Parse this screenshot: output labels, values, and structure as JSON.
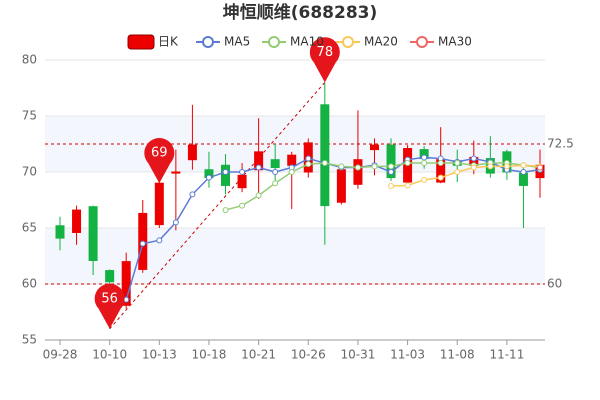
{
  "chart_data": {
    "type": "candlestick",
    "title": "坤恒顺维(688283)",
    "categories": [
      "09-28",
      null,
      null,
      "10-10",
      null,
      null,
      "10-13",
      null,
      null,
      "10-18",
      null,
      null,
      "10-21",
      null,
      null,
      "10-26",
      null,
      null,
      "10-31",
      null,
      null,
      "11-03",
      null,
      null,
      "11-08",
      null,
      null,
      "11-11",
      null,
      null
    ],
    "ylim": [
      55,
      80
    ],
    "yticks": [
      55,
      60,
      65,
      70,
      75,
      80
    ],
    "grid": true,
    "up_color": "#ec0000",
    "down_color": "#14b143",
    "candles": {
      "name": "日K",
      "open": [
        65.2,
        64.6,
        66.9,
        61.2,
        58.1,
        61.3,
        65.3,
        69.9,
        71.1,
        70.2,
        70.6,
        68.6,
        70.2,
        71.1,
        70.6,
        70.0,
        76.0,
        67.3,
        68.9,
        72.0,
        72.4,
        69.1,
        72.0,
        69.1,
        71.0,
        70.6,
        71.2,
        71.8,
        69.9,
        69.5
      ],
      "close": [
        64.1,
        66.6,
        62.1,
        60.2,
        62.0,
        66.3,
        69.0,
        70.0,
        72.4,
        69.5,
        68.8,
        69.7,
        71.8,
        70.4,
        71.5,
        72.6,
        67.0,
        70.2,
        71.1,
        72.4,
        69.5,
        72.1,
        71.2,
        71.1,
        70.6,
        71.3,
        69.9,
        70.0,
        68.8,
        70.6
      ],
      "high": [
        66.0,
        67.0,
        67.0,
        61.3,
        62.8,
        67.5,
        69.2,
        72.0,
        76.0,
        71.8,
        71.6,
        70.8,
        74.8,
        72.5,
        71.8,
        73.0,
        78.0,
        70.5,
        75.5,
        73.0,
        73.0,
        72.4,
        72.3,
        74.0,
        72.0,
        72.8,
        73.2,
        72.0,
        70.5,
        72.0
      ],
      "low": [
        63.0,
        63.5,
        60.8,
        56.0,
        57.8,
        61.0,
        65.0,
        64.8,
        70.2,
        68.6,
        68.0,
        68.2,
        67.6,
        68.8,
        66.7,
        69.5,
        63.5,
        67.1,
        68.5,
        69.7,
        69.2,
        68.9,
        70.3,
        69.0,
        69.1,
        69.8,
        69.5,
        69.3,
        65.0,
        67.7
      ]
    },
    "series": [
      {
        "name": "MA5",
        "color": "#5b7bd5",
        "values": [
          null,
          null,
          null,
          null,
          58.6,
          63.6,
          63.9,
          65.5,
          68.0,
          69.5,
          70.0,
          70.0,
          70.4,
          70.0,
          70.4,
          71.2,
          70.8,
          70.4,
          70.4,
          70.6,
          70.0,
          71.1,
          71.3,
          71.2,
          70.9,
          71.2,
          70.9,
          70.2,
          70.0,
          70.2
        ]
      },
      {
        "name": "MA10",
        "color": "#91cc75",
        "values": [
          null,
          null,
          null,
          null,
          null,
          null,
          null,
          null,
          null,
          null,
          66.6,
          67.0,
          67.9,
          69.0,
          70.0,
          70.7,
          70.8,
          70.5,
          70.4,
          70.5,
          70.5,
          70.8,
          70.8,
          70.8,
          70.8,
          70.6,
          70.8,
          70.8,
          70.6,
          70.4
        ]
      },
      {
        "name": "MA20",
        "color": "#fac858",
        "values": [
          null,
          null,
          null,
          null,
          null,
          null,
          null,
          null,
          null,
          null,
          null,
          null,
          null,
          null,
          null,
          null,
          null,
          null,
          null,
          null,
          68.75,
          68.8,
          69.3,
          69.5,
          70.0,
          70.4,
          70.5,
          70.5,
          70.6,
          70.5
        ]
      },
      {
        "name": "MA30",
        "color": "#ee6666",
        "values": [
          null,
          null,
          null,
          null,
          null,
          null,
          null,
          null,
          null,
          null,
          null,
          null,
          null,
          null,
          null,
          null,
          null,
          null,
          null,
          null,
          null,
          null,
          null,
          null,
          null,
          null,
          null,
          null,
          null,
          70.4
        ]
      }
    ],
    "ref_lines": [
      72.5,
      60
    ],
    "markers": [
      {
        "value": 56,
        "candle": 3
      },
      {
        "value": 69,
        "candle": 6
      },
      {
        "value": 78,
        "candle": 16
      }
    ]
  }
}
